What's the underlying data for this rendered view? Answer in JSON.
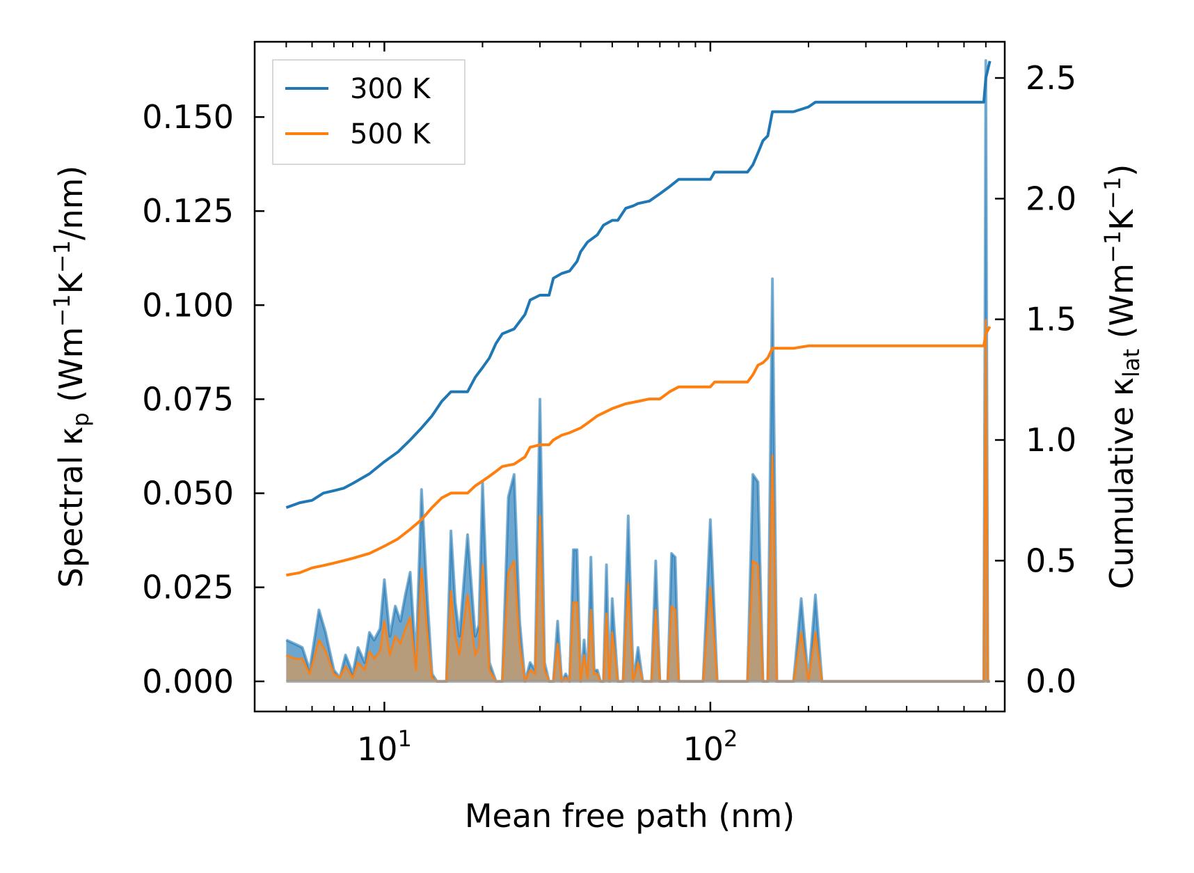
{
  "chart_data": {
    "type": "line",
    "xlabel": "Mean free path (nm)",
    "ylabel_left": {
      "prefix": "Spectral κ",
      "sub": "p",
      "units_pre": " (Wm",
      "sup1": "−1",
      "mid": "K",
      "sup2": "−1",
      "units_post": "/nm)"
    },
    "ylabel_right": {
      "prefix": "Cumulative κ",
      "sub": "lat",
      "units_pre": " (Wm",
      "sup1": "−1",
      "mid": "K",
      "sup2": "−1",
      "units_post": ")"
    },
    "xscale": "log",
    "xlim": [
      4.0,
      800
    ],
    "ylim_left": [
      -0.008,
      0.17
    ],
    "ylim_right": [
      -0.125,
      2.65
    ],
    "x_ticks": [
      {
        "base": "10",
        "exp": "1",
        "value": 10
      },
      {
        "base": "10",
        "exp": "2",
        "value": 100
      }
    ],
    "y_ticks_left": [
      "0.000",
      "0.025",
      "0.050",
      "0.075",
      "0.100",
      "0.125",
      "0.150"
    ],
    "y_ticks_right": [
      "0.0",
      "0.5",
      "1.0",
      "1.5",
      "2.0",
      "2.5"
    ],
    "legend": {
      "position": "top-left",
      "entries": [
        "300 K",
        "500 K"
      ]
    },
    "colors": {
      "300 K": "#1f77b4",
      "500 K": "#ff7f0e",
      "spectral_500_fill": "#c49a6c"
    },
    "series": [
      {
        "name": "300 K",
        "axis": "right",
        "kind": "cumulative",
        "x": [
          5,
          5.5,
          6,
          6.5,
          7,
          7.5,
          8,
          9,
          10,
          11,
          12,
          13,
          14,
          15,
          16,
          18,
          19,
          20,
          21,
          22,
          23,
          25,
          27,
          28,
          30,
          32,
          33,
          35,
          37,
          39,
          40,
          42,
          45,
          47,
          50,
          52,
          55,
          58,
          60,
          65,
          70,
          75,
          80,
          90,
          100,
          103,
          110,
          130,
          135,
          140,
          145,
          150,
          155,
          160,
          180,
          200,
          210,
          300,
          400,
          500,
          650,
          690,
          700,
          720
        ],
        "y": [
          0.72,
          0.74,
          0.75,
          0.78,
          0.79,
          0.8,
          0.82,
          0.86,
          0.91,
          0.95,
          1.0,
          1.05,
          1.1,
          1.16,
          1.2,
          1.2,
          1.26,
          1.3,
          1.34,
          1.4,
          1.44,
          1.46,
          1.52,
          1.58,
          1.6,
          1.6,
          1.67,
          1.69,
          1.7,
          1.74,
          1.78,
          1.82,
          1.85,
          1.89,
          1.91,
          1.91,
          1.96,
          1.97,
          1.98,
          1.99,
          2.02,
          2.05,
          2.08,
          2.08,
          2.08,
          2.11,
          2.11,
          2.11,
          2.14,
          2.19,
          2.24,
          2.26,
          2.36,
          2.36,
          2.36,
          2.38,
          2.4,
          2.4,
          2.4,
          2.4,
          2.4,
          2.4,
          2.5,
          2.57
        ]
      },
      {
        "name": "500 K",
        "axis": "right",
        "kind": "cumulative",
        "x": [
          5,
          5.5,
          6,
          6.5,
          7,
          7.5,
          8,
          9,
          10,
          11,
          12,
          13,
          14,
          15,
          16,
          18,
          19,
          20,
          21,
          22,
          23,
          25,
          27,
          28,
          30,
          32,
          33,
          35,
          37,
          40,
          42,
          45,
          50,
          55,
          60,
          65,
          70,
          75,
          80,
          90,
          100,
          103,
          110,
          130,
          135,
          140,
          145,
          150,
          155,
          160,
          180,
          200,
          210,
          300,
          400,
          500,
          650,
          690,
          700,
          720
        ],
        "y": [
          0.44,
          0.45,
          0.47,
          0.48,
          0.49,
          0.5,
          0.51,
          0.53,
          0.56,
          0.59,
          0.63,
          0.67,
          0.72,
          0.76,
          0.78,
          0.78,
          0.81,
          0.83,
          0.85,
          0.87,
          0.89,
          0.9,
          0.93,
          0.97,
          0.98,
          0.98,
          1.0,
          1.02,
          1.03,
          1.05,
          1.07,
          1.1,
          1.13,
          1.15,
          1.16,
          1.17,
          1.17,
          1.2,
          1.22,
          1.22,
          1.22,
          1.24,
          1.24,
          1.24,
          1.27,
          1.31,
          1.32,
          1.34,
          1.38,
          1.38,
          1.38,
          1.39,
          1.39,
          1.39,
          1.39,
          1.39,
          1.39,
          1.39,
          1.44,
          1.47
        ]
      },
      {
        "name": "300 K",
        "axis": "left",
        "kind": "spectral",
        "x": [
          5,
          5.3,
          5.6,
          5.9,
          6.3,
          6.6,
          7,
          7.3,
          7.6,
          8,
          8.3,
          8.7,
          9,
          9.3,
          9.7,
          10,
          10.4,
          10.8,
          11.2,
          11.6,
          12,
          12.5,
          13,
          13.5,
          14,
          14.5,
          15,
          15.5,
          16,
          16.5,
          17,
          18,
          19,
          19.5,
          20,
          21,
          22,
          23,
          24,
          25,
          26,
          27,
          28,
          29,
          30,
          31,
          32,
          33,
          34,
          35,
          36,
          37,
          38,
          39,
          40,
          41,
          42,
          43,
          44,
          45,
          46,
          47,
          48,
          49,
          50,
          52,
          54,
          56,
          58,
          60,
          62,
          64,
          66,
          68,
          70,
          72,
          74,
          76,
          78,
          80,
          85,
          90,
          95,
          100,
          105,
          110,
          120,
          130,
          135,
          140,
          145,
          150,
          155,
          160,
          165,
          170,
          180,
          190,
          200,
          210,
          220,
          300,
          500,
          690,
          700,
          710,
          720
        ],
        "y": [
          0.011,
          0.01,
          0.009,
          0.003,
          0.019,
          0.013,
          0.003,
          0.001,
          0.007,
          0.002,
          0.009,
          0.005,
          0.013,
          0.011,
          0.014,
          0.027,
          0.012,
          0.02,
          0.016,
          0.023,
          0.029,
          0.005,
          0.051,
          0.024,
          0.002,
          0.0,
          0.0,
          0.0,
          0.04,
          0.021,
          0.012,
          0.039,
          0.012,
          0.015,
          0.053,
          0.005,
          0.0,
          0.0,
          0.049,
          0.055,
          0.016,
          0.0,
          0.005,
          0.003,
          0.075,
          0.005,
          0.0,
          0.0,
          0.016,
          0.0,
          0.002,
          0.0,
          0.035,
          0.035,
          0.0,
          0.011,
          0.001,
          0.033,
          0.003,
          0.003,
          0.0,
          0.0,
          0.031,
          0.0,
          0.022,
          0.0,
          0.0,
          0.044,
          0.0,
          0.009,
          0.0,
          0.0,
          0.0,
          0.032,
          0.0,
          0.0,
          0.0,
          0.034,
          0.033,
          0.0,
          0.0,
          0.0,
          0.0,
          0.043,
          0.0,
          0.0,
          0.0,
          0.0,
          0.055,
          0.053,
          0.0,
          0.0,
          0.107,
          0.0,
          0.0,
          0.0,
          0.0,
          0.022,
          0.0,
          0.023,
          0.0,
          0.0,
          0.0,
          0.0,
          0.165,
          0.0,
          0.0
        ]
      },
      {
        "name": "500 K",
        "axis": "left",
        "kind": "spectral",
        "x": [
          5,
          5.3,
          5.6,
          5.9,
          6.3,
          6.6,
          7,
          7.3,
          7.6,
          8,
          8.3,
          8.7,
          9,
          9.3,
          9.7,
          10,
          10.4,
          10.8,
          11.2,
          11.6,
          12,
          12.5,
          13,
          13.5,
          14,
          14.5,
          15,
          15.5,
          16,
          16.5,
          17,
          18,
          19,
          19.5,
          20,
          21,
          22,
          23,
          24,
          25,
          26,
          27,
          28,
          29,
          30,
          31,
          32,
          33,
          34,
          35,
          36,
          37,
          38,
          39,
          40,
          41,
          42,
          43,
          44,
          45,
          46,
          47,
          48,
          49,
          50,
          52,
          54,
          56,
          58,
          60,
          62,
          64,
          66,
          68,
          70,
          72,
          74,
          76,
          78,
          80,
          85,
          90,
          95,
          100,
          105,
          110,
          120,
          130,
          135,
          140,
          145,
          150,
          155,
          160,
          165,
          170,
          180,
          190,
          200,
          210,
          220,
          300,
          500,
          690,
          700,
          710,
          720
        ],
        "y": [
          0.007,
          0.006,
          0.006,
          0.002,
          0.011,
          0.008,
          0.002,
          0.001,
          0.004,
          0.001,
          0.005,
          0.003,
          0.008,
          0.006,
          0.008,
          0.016,
          0.007,
          0.012,
          0.01,
          0.014,
          0.017,
          0.003,
          0.03,
          0.014,
          0.001,
          0.0,
          0.0,
          0.0,
          0.024,
          0.012,
          0.007,
          0.023,
          0.007,
          0.009,
          0.031,
          0.003,
          0.0,
          0.0,
          0.029,
          0.032,
          0.01,
          0.0,
          0.003,
          0.002,
          0.044,
          0.003,
          0.0,
          0.0,
          0.01,
          0.0,
          0.001,
          0.0,
          0.021,
          0.021,
          0.0,
          0.007,
          0.001,
          0.019,
          0.002,
          0.002,
          0.0,
          0.0,
          0.018,
          0.0,
          0.013,
          0.0,
          0.0,
          0.026,
          0.0,
          0.005,
          0.0,
          0.0,
          0.0,
          0.019,
          0.0,
          0.0,
          0.0,
          0.02,
          0.019,
          0.0,
          0.0,
          0.0,
          0.0,
          0.025,
          0.0,
          0.0,
          0.0,
          0.0,
          0.032,
          0.031,
          0.0,
          0.0,
          0.06,
          0.0,
          0.0,
          0.0,
          0.0,
          0.013,
          0.0,
          0.013,
          0.0,
          0.0,
          0.0,
          0.0,
          0.096,
          0.0,
          0.0
        ]
      }
    ]
  }
}
